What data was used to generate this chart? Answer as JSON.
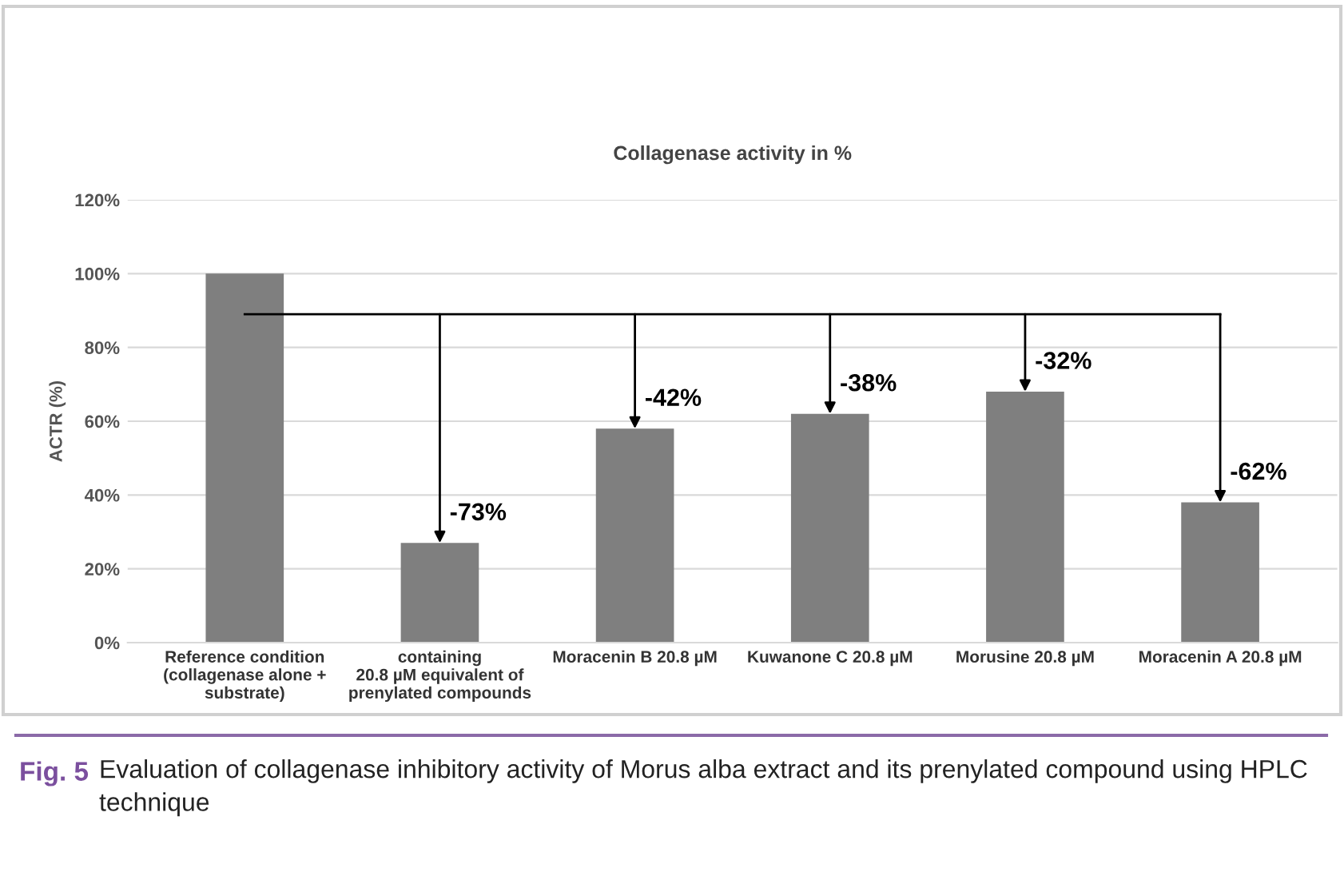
{
  "chart_data": {
    "type": "bar",
    "title": "Collagenase activity in %",
    "ylabel": "ACTR (%)",
    "categories": [
      "Reference condition\n(collagenase alone +\nsubstrate)",
      "containing\n20.8 µM equivalent of\nprenylated compounds",
      "Moracenin B 20.8 µM",
      "Kuwanone C 20.8 µM",
      "Morusine 20.8 µM",
      "Moracenin A 20.8 µM"
    ],
    "values": [
      100,
      27,
      58,
      62,
      68,
      38
    ],
    "color": "#7f7f7f",
    "ylim": [
      0,
      120
    ],
    "yticks": [
      {
        "value": 0,
        "label": "0%"
      },
      {
        "value": 20,
        "label": "20%"
      },
      {
        "value": 40,
        "label": "40%"
      },
      {
        "value": 60,
        "label": "60%"
      },
      {
        "value": 80,
        "label": "80%"
      },
      {
        "value": 100,
        "label": "100%"
      },
      {
        "value": 120,
        "label": "120%"
      }
    ],
    "grid": "y",
    "ref_lines": [
      {
        "axis": "y",
        "value": 89,
        "color": "#000000"
      }
    ],
    "annotations": [
      {
        "text": "-73%",
        "x": "containing\n20.8 µM equivalent of\nprenylated compounds",
        "y": 27
      },
      {
        "text": "-42%",
        "x": "Moracenin B 20.8 µM",
        "y": 58
      },
      {
        "text": "-38%",
        "x": "Kuwanone C 20.8 µM",
        "y": 62
      },
      {
        "text": "-32%",
        "x": "Morusine 20.8 µM",
        "y": 68
      },
      {
        "text": "-62%",
        "x": "Moracenin A 20.8 µM",
        "y": 38
      },
      "Fig. 5",
      "Evaluation of collagenase inhibitory activity of Morus alba extract and its prenylated compound using HPLC technique"
    ]
  }
}
